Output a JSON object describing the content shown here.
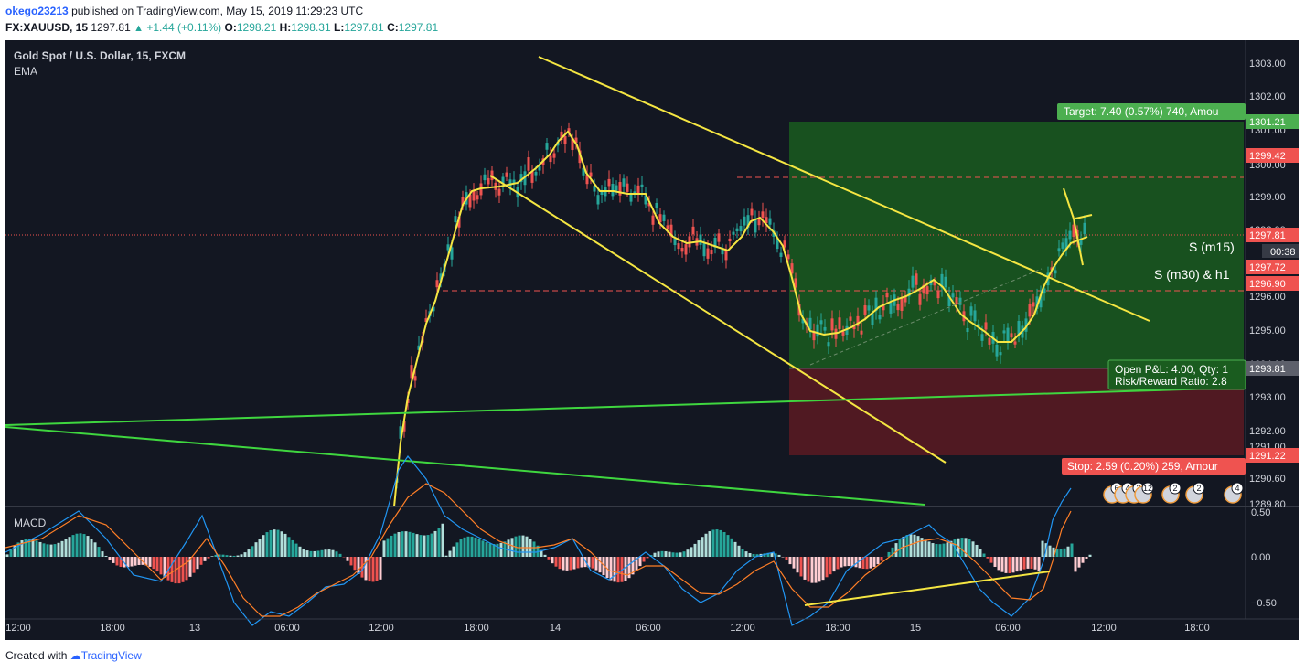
{
  "header": {
    "username": "okego23213",
    "published_text": "published on TradingView.com, May 15, 2019 11:29:23 UTC",
    "symbol": "FX:XAUUSD, 15",
    "price": "1297.81",
    "change": "+1.44 (+0.11%)",
    "open_label": "O:",
    "open": "1298.21",
    "high_label": "H:",
    "high": "1298.31",
    "low_label": "L:",
    "low": "1297.81",
    "close_label": "C:",
    "close": "1297.81"
  },
  "chart": {
    "symbol_title": "Gold Spot / U.S. Dollar, 15, FXCM",
    "indicator_ema": "EMA",
    "indicator_macd": "MACD",
    "target_label": "Target: 7.40 (0.57%) 740, Amou",
    "stop_label": "Stop: 2.59 (0.20%) 259, Amour",
    "pnl_label": "Open P&L: 4.00, Qty: 1",
    "rr_label": "Risk/Reward Ratio: 2.8",
    "annotation_m15": "S (m15)",
    "annotation_m30": "S (m30) & h1",
    "countdown": "00:38",
    "event_badges": [
      "6",
      "4",
      "3",
      "12",
      "2",
      "2",
      "4"
    ],
    "colors": {
      "background": "#131722",
      "up": "#26a69a",
      "down": "#ef5350",
      "ema": "#f5e642",
      "trend_yellow": "#f5e642",
      "trend_green": "#3fd63f",
      "target_zone": "#1e5a1e",
      "stop_zone": "#5a1e24"
    }
  },
  "price_axis": {
    "ticks": [
      "1303.00",
      "1302.00",
      "1301.00",
      "1300.00",
      "1299.00",
      "1298.00",
      "1297.00",
      "1296.00",
      "1295.00",
      "1294.00",
      "1293.00",
      "1292.00",
      "1291.00",
      "1290.60",
      "1289.80"
    ],
    "tags": [
      {
        "value": "1301.21",
        "color": "#4caf50"
      },
      {
        "value": "1299.42",
        "color": "#ef5350"
      },
      {
        "value": "1297.81",
        "color": "#ef5350"
      },
      {
        "value": "1297.72",
        "color": "#ef5350"
      },
      {
        "value": "1296.90",
        "color": "#ef5350"
      },
      {
        "value": "1293.81",
        "color": "#5d606b"
      },
      {
        "value": "1291.22",
        "color": "#ef5350"
      }
    ]
  },
  "macd_axis": {
    "ticks": [
      "0.50",
      "0.00",
      "−0.50"
    ]
  },
  "time_axis": {
    "ticks": [
      "12:00",
      "18:00",
      "13",
      "06:00",
      "12:00",
      "18:00",
      "14",
      "06:00",
      "12:00",
      "18:00",
      "15",
      "06:00",
      "12:00",
      "18:00"
    ]
  },
  "footer": {
    "created_with": "Created with",
    "brand": "TradingView"
  }
}
